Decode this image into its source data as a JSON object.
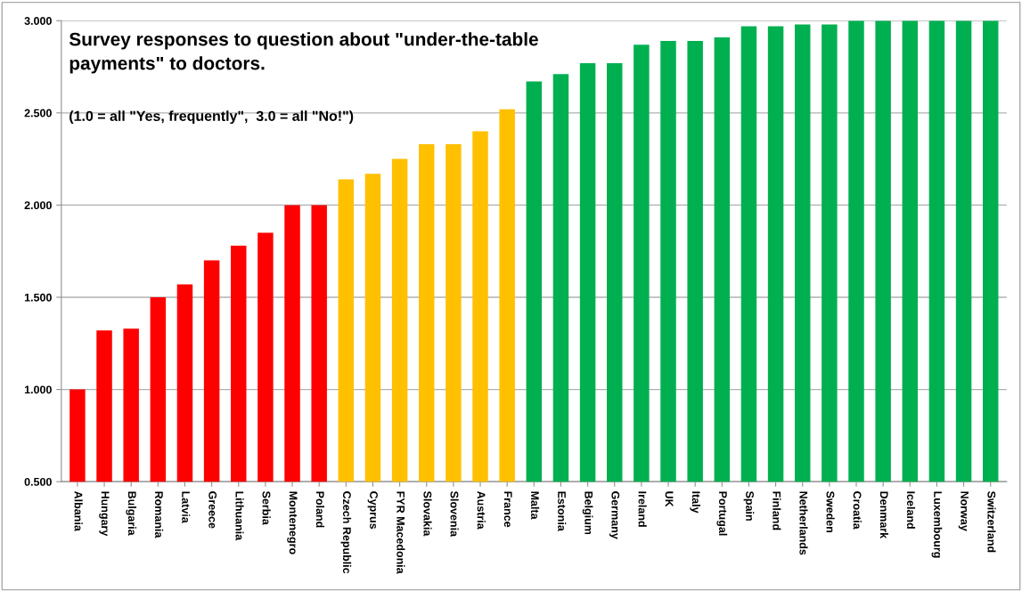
{
  "chart_data": {
    "type": "bar",
    "title": "Survey responses to question about \"under-the-table\npayments\" to doctors.",
    "subtitle": "(1.0 = all \"Yes, frequently\",  3.0 = all \"No!\")",
    "categories": [
      "Albania",
      "Hungary",
      "Bulgaria",
      "Romania",
      "Latvia",
      "Greece",
      "Lithuania",
      "Serbia",
      "Montenegro",
      "Poland",
      "Czech Republic",
      "Cyprus",
      "FYR Macedonia",
      "Slovakia",
      "Slovenia",
      "Austria",
      "France",
      "Malta",
      "Estonia",
      "Belgium",
      "Germany",
      "Ireland",
      "UK",
      "Italy",
      "Portugal",
      "Spain",
      "Finland",
      "Netherlands",
      "Sweden",
      "Croatia",
      "Denmark",
      "Iceland",
      "Luxembourg",
      "Norway",
      "Switzerland"
    ],
    "values": [
      1.0,
      1.32,
      1.33,
      1.5,
      1.57,
      1.7,
      1.78,
      1.85,
      2.0,
      2.0,
      2.14,
      2.17,
      2.25,
      2.33,
      2.33,
      2.4,
      2.52,
      2.67,
      2.71,
      2.77,
      2.77,
      2.87,
      2.89,
      2.89,
      2.91,
      2.97,
      2.97,
      2.98,
      2.98,
      3.0,
      3.0,
      3.0,
      3.0,
      3.0,
      3.0
    ],
    "colors": [
      "#ff0000",
      "#ff0000",
      "#ff0000",
      "#ff0000",
      "#ff0000",
      "#ff0000",
      "#ff0000",
      "#ff0000",
      "#ff0000",
      "#ff0000",
      "#ffc000",
      "#ffc000",
      "#ffc000",
      "#ffc000",
      "#ffc000",
      "#ffc000",
      "#ffc000",
      "#00b050",
      "#00b050",
      "#00b050",
      "#00b050",
      "#00b050",
      "#00b050",
      "#00b050",
      "#00b050",
      "#00b050",
      "#00b050",
      "#00b050",
      "#00b050",
      "#00b050",
      "#00b050",
      "#00b050",
      "#00b050",
      "#00b050",
      "#00b050"
    ],
    "ylim": [
      0.5,
      3.0
    ],
    "yticks": [
      {
        "value": 0.5,
        "label": "0.500"
      },
      {
        "value": 1.0,
        "label": "1.000"
      },
      {
        "value": 1.5,
        "label": "1.500"
      },
      {
        "value": 2.0,
        "label": "2.000"
      },
      {
        "value": 2.5,
        "label": "2.500"
      },
      {
        "value": 3.0,
        "label": "3.000"
      }
    ],
    "grid": "y"
  }
}
